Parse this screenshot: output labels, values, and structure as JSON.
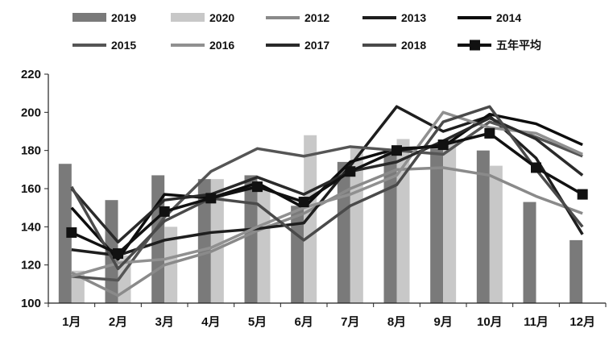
{
  "chart_data": {
    "type": "bar",
    "categories": [
      "1月",
      "2月",
      "3月",
      "4月",
      "5月",
      "6月",
      "7月",
      "8月",
      "9月",
      "10月",
      "11月",
      "12月"
    ],
    "ylim": [
      100,
      220
    ],
    "yticks": [
      100,
      120,
      140,
      160,
      180,
      200,
      220
    ],
    "grid": false,
    "legend_position": "top",
    "bar_series": [
      {
        "name": "2019",
        "color": "#7a7a7a",
        "values": [
          173,
          154,
          167,
          165,
          167,
          151,
          174,
          179,
          181,
          180,
          153,
          133
        ]
      },
      {
        "name": "2020",
        "color": "#c8c8c8",
        "values": [
          117,
          125,
          140,
          165,
          160,
          188,
          182,
          186,
          186,
          172,
          null,
          null
        ]
      }
    ],
    "line_series": [
      {
        "name": "2012",
        "color": "#8a8a8a",
        "values": [
          116,
          104,
          120,
          127,
          138,
          147,
          160,
          170,
          171,
          167,
          156,
          147
        ]
      },
      {
        "name": "2013",
        "color": "#1e1e1e",
        "values": [
          128,
          125,
          133,
          137,
          139,
          142,
          172,
          203,
          190,
          198,
          176,
          136
        ]
      },
      {
        "name": "2014",
        "color": "#0d0d0d",
        "values": [
          150,
          123,
          157,
          155,
          163,
          150,
          174,
          181,
          182,
          199,
          194,
          183
        ]
      },
      {
        "name": "2015",
        "color": "#555555",
        "values": [
          114,
          112,
          145,
          169,
          181,
          177,
          182,
          180,
          178,
          195,
          187,
          177
        ]
      },
      {
        "name": "2016",
        "color": "#909090",
        "values": [
          114,
          121,
          123,
          129,
          140,
          150,
          157,
          167,
          200,
          192,
          189,
          178
        ]
      },
      {
        "name": "2017",
        "color": "#2a2a2a",
        "values": [
          160,
          132,
          154,
          157,
          166,
          157,
          169,
          174,
          185,
          197,
          186,
          167
        ]
      },
      {
        "name": "2018",
        "color": "#4a4a4a",
        "values": [
          161,
          118,
          143,
          155,
          152,
          133,
          151,
          162,
          195,
          203,
          170,
          140
        ]
      }
    ],
    "average_series": {
      "name": "五年平均",
      "color": "#111111",
      "marker": "square",
      "values": [
        137,
        126,
        148,
        155,
        161,
        153,
        169,
        180,
        183,
        189,
        171,
        157
      ]
    }
  }
}
